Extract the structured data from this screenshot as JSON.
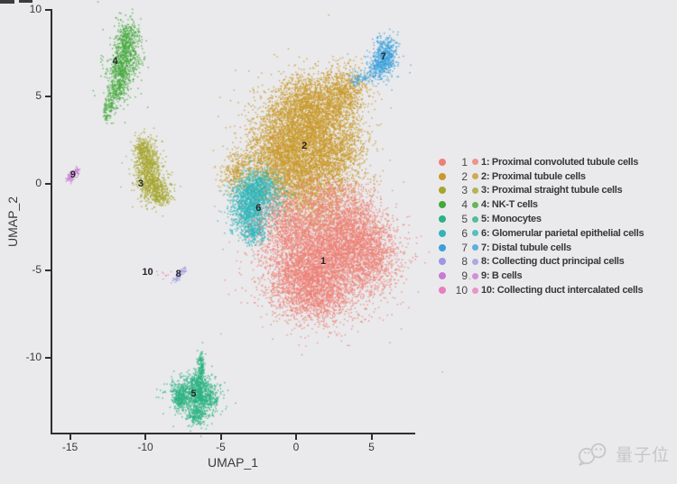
{
  "figure": {
    "watermark": {
      "text": "量子位",
      "color": "#c7c7c7"
    }
  },
  "chart_data": {
    "type": "scatter",
    "variant": "umap-single-cell-cluster-plot",
    "title": "",
    "xlabel": "UMAP_1",
    "ylabel": "UMAP_2",
    "x_ticks": [
      -15,
      -10,
      -5,
      0,
      5
    ],
    "y_ticks": [
      10,
      5,
      0,
      -5,
      -10
    ],
    "xlim": [
      -16.2,
      7.8
    ],
    "ylim": [
      -14.4,
      10.0
    ],
    "grid": false,
    "legend_position": "right",
    "axis_color": "#2f2f2f",
    "point_count_note": "dense point clouds approximated by gaussian blobs [cx,cy,sx,sy,n] in data coords",
    "clusters": [
      {
        "id": 1,
        "name": "Proximal convoluted tubule cells",
        "color": "#ED8076",
        "label_pos": [
          1.8,
          -4.5
        ],
        "blobs": [
          [
            1.6,
            -4.3,
            1.8,
            1.5,
            4000
          ],
          [
            3.7,
            -2.8,
            1.2,
            0.95,
            1200
          ],
          [
            5.0,
            -4.3,
            1.05,
            1.05,
            850
          ],
          [
            1.0,
            -6.4,
            1.35,
            0.8,
            950
          ],
          [
            -0.6,
            -2.2,
            0.95,
            0.9,
            650
          ],
          [
            2.4,
            -1.0,
            1.3,
            0.75,
            550
          ],
          [
            0.2,
            -5.2,
            1.0,
            0.9,
            500
          ],
          [
            1.8,
            -4.0,
            3.0,
            2.4,
            200
          ]
        ]
      },
      {
        "id": 2,
        "name": "Proximal tubule cells",
        "color": "#C9992B",
        "label_pos": [
          0.55,
          2.15
        ],
        "blobs": [
          [
            0.3,
            2.3,
            1.55,
            1.35,
            3600
          ],
          [
            0.8,
            4.5,
            1.25,
            0.95,
            1500
          ],
          [
            3.0,
            5.2,
            0.8,
            0.7,
            800
          ],
          [
            -1.6,
            1.3,
            0.95,
            1.15,
            900
          ],
          [
            2.7,
            1.9,
            1.0,
            1.2,
            900
          ],
          [
            0.6,
            -0.2,
            1.3,
            0.85,
            800
          ],
          [
            -4.0,
            0.7,
            0.55,
            0.6,
            300
          ],
          [
            1.6,
            -1.8,
            1.4,
            0.9,
            260
          ],
          [
            0.5,
            2.6,
            2.6,
            2.2,
            200
          ]
        ]
      },
      {
        "id": 3,
        "name": "Proximal straight tubule cells",
        "color": "#A6A62E",
        "label_pos": [
          -10.3,
          0.0
        ],
        "blobs": [
          [
            -9.9,
            1.0,
            0.42,
            0.7,
            650
          ],
          [
            -9.35,
            -0.25,
            0.5,
            0.45,
            380
          ],
          [
            -10.25,
            2.1,
            0.28,
            0.35,
            140
          ],
          [
            -9.0,
            -0.8,
            0.3,
            0.25,
            90
          ],
          [
            -9.7,
            0.6,
            0.8,
            1.0,
            60
          ]
        ]
      },
      {
        "id": 4,
        "name": "NK-T cells",
        "color": "#44A93C",
        "label_pos": [
          -12.0,
          7.0
        ],
        "blobs": [
          [
            -11.2,
            8.3,
            0.42,
            0.55,
            300
          ],
          [
            -11.35,
            7.3,
            0.5,
            0.5,
            300
          ],
          [
            -11.6,
            6.4,
            0.42,
            0.45,
            250
          ],
          [
            -11.9,
            5.5,
            0.32,
            0.45,
            200
          ],
          [
            -12.35,
            4.6,
            0.18,
            0.4,
            90
          ],
          [
            -12.7,
            4.05,
            0.1,
            0.28,
            40
          ],
          [
            -11.5,
            7.0,
            0.8,
            1.5,
            80
          ]
        ]
      },
      {
        "id": 5,
        "name": "Monocytes",
        "color": "#2BB381",
        "label_pos": [
          -6.8,
          -12.1
        ],
        "blobs": [
          [
            -6.35,
            -10.55,
            0.13,
            0.45,
            170
          ],
          [
            -6.6,
            -11.4,
            0.3,
            0.3,
            150
          ],
          [
            -7.0,
            -12.1,
            0.75,
            0.5,
            650
          ],
          [
            -6.1,
            -12.35,
            0.5,
            0.45,
            380
          ],
          [
            -7.75,
            -12.3,
            0.22,
            0.3,
            180
          ],
          [
            -6.6,
            -13.25,
            0.3,
            0.3,
            200
          ],
          [
            -6.6,
            -12.2,
            1.1,
            0.9,
            80
          ]
        ]
      },
      {
        "id": 6,
        "name": "Glomerular parietal epithelial cells",
        "color": "#30B5B9",
        "label_pos": [
          -2.5,
          -1.4
        ],
        "blobs": [
          [
            -3.1,
            -1.2,
            0.62,
            0.8,
            1200
          ],
          [
            -2.45,
            -0.15,
            0.55,
            0.45,
            420
          ],
          [
            -2.75,
            -2.7,
            0.45,
            0.4,
            260
          ],
          [
            -1.7,
            -0.8,
            0.7,
            0.7,
            200
          ],
          [
            -3.0,
            -1.3,
            1.0,
            1.2,
            80
          ]
        ]
      },
      {
        "id": 7,
        "name": "Distal tubule cells",
        "color": "#3AA0DC",
        "label_pos": [
          5.8,
          7.3
        ],
        "blobs": [
          [
            5.85,
            7.35,
            0.38,
            0.5,
            520
          ],
          [
            5.35,
            6.65,
            0.3,
            0.25,
            110
          ],
          [
            4.5,
            6.15,
            0.5,
            0.22,
            70
          ],
          [
            3.95,
            5.95,
            0.25,
            0.15,
            25
          ],
          [
            5.6,
            7.0,
            0.8,
            0.8,
            30
          ]
        ]
      },
      {
        "id": 8,
        "name": "Collecting duct principal cells",
        "color": "#9B97E0",
        "label_pos": [
          -7.8,
          -5.2
        ],
        "blobs": [
          [
            -8.05,
            -5.45,
            0.12,
            0.08,
            18
          ],
          [
            -7.8,
            -5.25,
            0.12,
            0.09,
            22
          ],
          [
            -7.55,
            -5.0,
            0.1,
            0.08,
            16
          ],
          [
            -7.4,
            -4.85,
            0.08,
            0.06,
            8
          ]
        ]
      },
      {
        "id": 9,
        "name": "B cells",
        "color": "#C77BD4",
        "label_pos": [
          -14.8,
          0.5
        ],
        "blobs": [
          [
            -15.05,
            0.3,
            0.13,
            0.1,
            30
          ],
          [
            -14.85,
            0.5,
            0.15,
            0.12,
            35
          ],
          [
            -14.6,
            0.75,
            0.12,
            0.1,
            25
          ]
        ]
      },
      {
        "id": 10,
        "name": "Collecting duct intercalated cells",
        "color": "#E77FC0",
        "label_pos": [
          -9.85,
          -5.1
        ],
        "blobs": [
          [
            -9.0,
            -5.1,
            0.4,
            0.12,
            10
          ]
        ]
      }
    ],
    "draw_order": [
      2,
      6,
      1,
      3,
      4,
      5,
      7,
      8,
      9,
      10
    ]
  }
}
